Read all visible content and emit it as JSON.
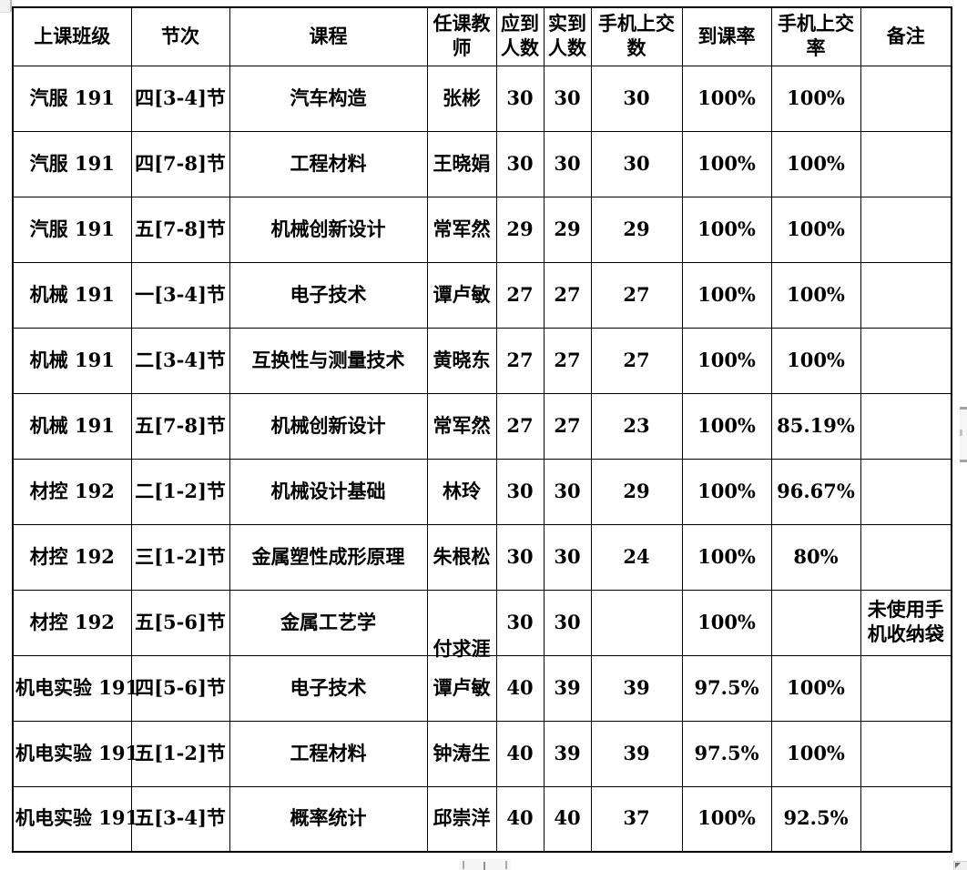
{
  "page": {
    "background": "#ffffff",
    "table_border_color": "#000000",
    "text_color": "#000000",
    "scrollbar_body_color": "#f5f5f5",
    "scrollbar_cap_color": "#a3a3a3"
  },
  "table": {
    "columns": [
      "上课班级",
      "节次",
      "课程",
      "任课教师",
      "应到人数",
      "实到人数",
      "手机上交数",
      "到课率",
      "手机上交率",
      "备注"
    ],
    "rows": [
      {
        "class_name": "汽服 191",
        "period": "四[3-4]节",
        "course": "汽车构造",
        "teacher": "张彬",
        "expected": "30",
        "actual": "30",
        "phones_submitted": "30",
        "attendance_rate": "100%",
        "phone_rate": "100%",
        "remark": ""
      },
      {
        "class_name": "汽服 191",
        "period": "四[7-8]节",
        "course": "工程材料",
        "teacher": "王晓娟",
        "expected": "30",
        "actual": "30",
        "phones_submitted": "30",
        "attendance_rate": "100%",
        "phone_rate": "100%",
        "remark": ""
      },
      {
        "class_name": "汽服 191",
        "period": "五[7-8]节",
        "course": "机械创新设计",
        "teacher": "常军然",
        "expected": "29",
        "actual": "29",
        "phones_submitted": "29",
        "attendance_rate": "100%",
        "phone_rate": "100%",
        "remark": ""
      },
      {
        "class_name": "机械 191",
        "period": "一[3-4]节",
        "course": "电子技术",
        "teacher": "谭卢敏",
        "expected": "27",
        "actual": "27",
        "phones_submitted": "27",
        "attendance_rate": "100%",
        "phone_rate": "100%",
        "remark": ""
      },
      {
        "class_name": "机械 191",
        "period": "二[3-4]节",
        "course": "互换性与测量技术",
        "teacher": "黄晓东",
        "expected": "27",
        "actual": "27",
        "phones_submitted": "27",
        "attendance_rate": "100%",
        "phone_rate": "100%",
        "remark": ""
      },
      {
        "class_name": "机械 191",
        "period": "五[7-8]节",
        "course": "机械创新设计",
        "teacher": "常军然",
        "expected": "27",
        "actual": "27",
        "phones_submitted": "23",
        "attendance_rate": "100%",
        "phone_rate": "85.19%",
        "remark": ""
      },
      {
        "class_name": "材控 192",
        "period": "二[1-2]节",
        "course": "机械设计基础",
        "teacher": "林玲",
        "expected": "30",
        "actual": "30",
        "phones_submitted": "29",
        "attendance_rate": "100%",
        "phone_rate": "96.67%",
        "remark": ""
      },
      {
        "class_name": "材控 192",
        "period": "三[1-2]节",
        "course": "金属塑性成形原理",
        "teacher": "朱根松",
        "expected": "30",
        "actual": "30",
        "phones_submitted": "24",
        "attendance_rate": "100%",
        "phone_rate": "80%",
        "remark": ""
      },
      {
        "class_name": "材控 192",
        "period": "五[5-6]节",
        "course": "金属工艺学",
        "teacher": "付求涯",
        "expected": "30",
        "actual": "30",
        "phones_submitted": "",
        "attendance_rate": "100%",
        "phone_rate": "",
        "remark": "未使用手机收纳袋"
      },
      {
        "class_name": "机电实验 191",
        "period": "四[5-6]节",
        "course": "电子技术",
        "teacher": "谭卢敏",
        "expected": "40",
        "actual": "39",
        "phones_submitted": "39",
        "attendance_rate": "97.5%",
        "phone_rate": "100%",
        "remark": ""
      },
      {
        "class_name": "机电实验 191",
        "period": "五[1-2]节",
        "course": "工程材料",
        "teacher": "钟涛生",
        "expected": "40",
        "actual": "39",
        "phones_submitted": "39",
        "attendance_rate": "97.5%",
        "phone_rate": "100%",
        "remark": ""
      },
      {
        "class_name": "机电实验 191",
        "period": "五[3-4]节",
        "course": "概率统计",
        "teacher": "邱崇洋",
        "expected": "40",
        "actual": "40",
        "phones_submitted": "37",
        "attendance_rate": "100%",
        "phone_rate": "92.5%",
        "remark": ""
      }
    ]
  }
}
